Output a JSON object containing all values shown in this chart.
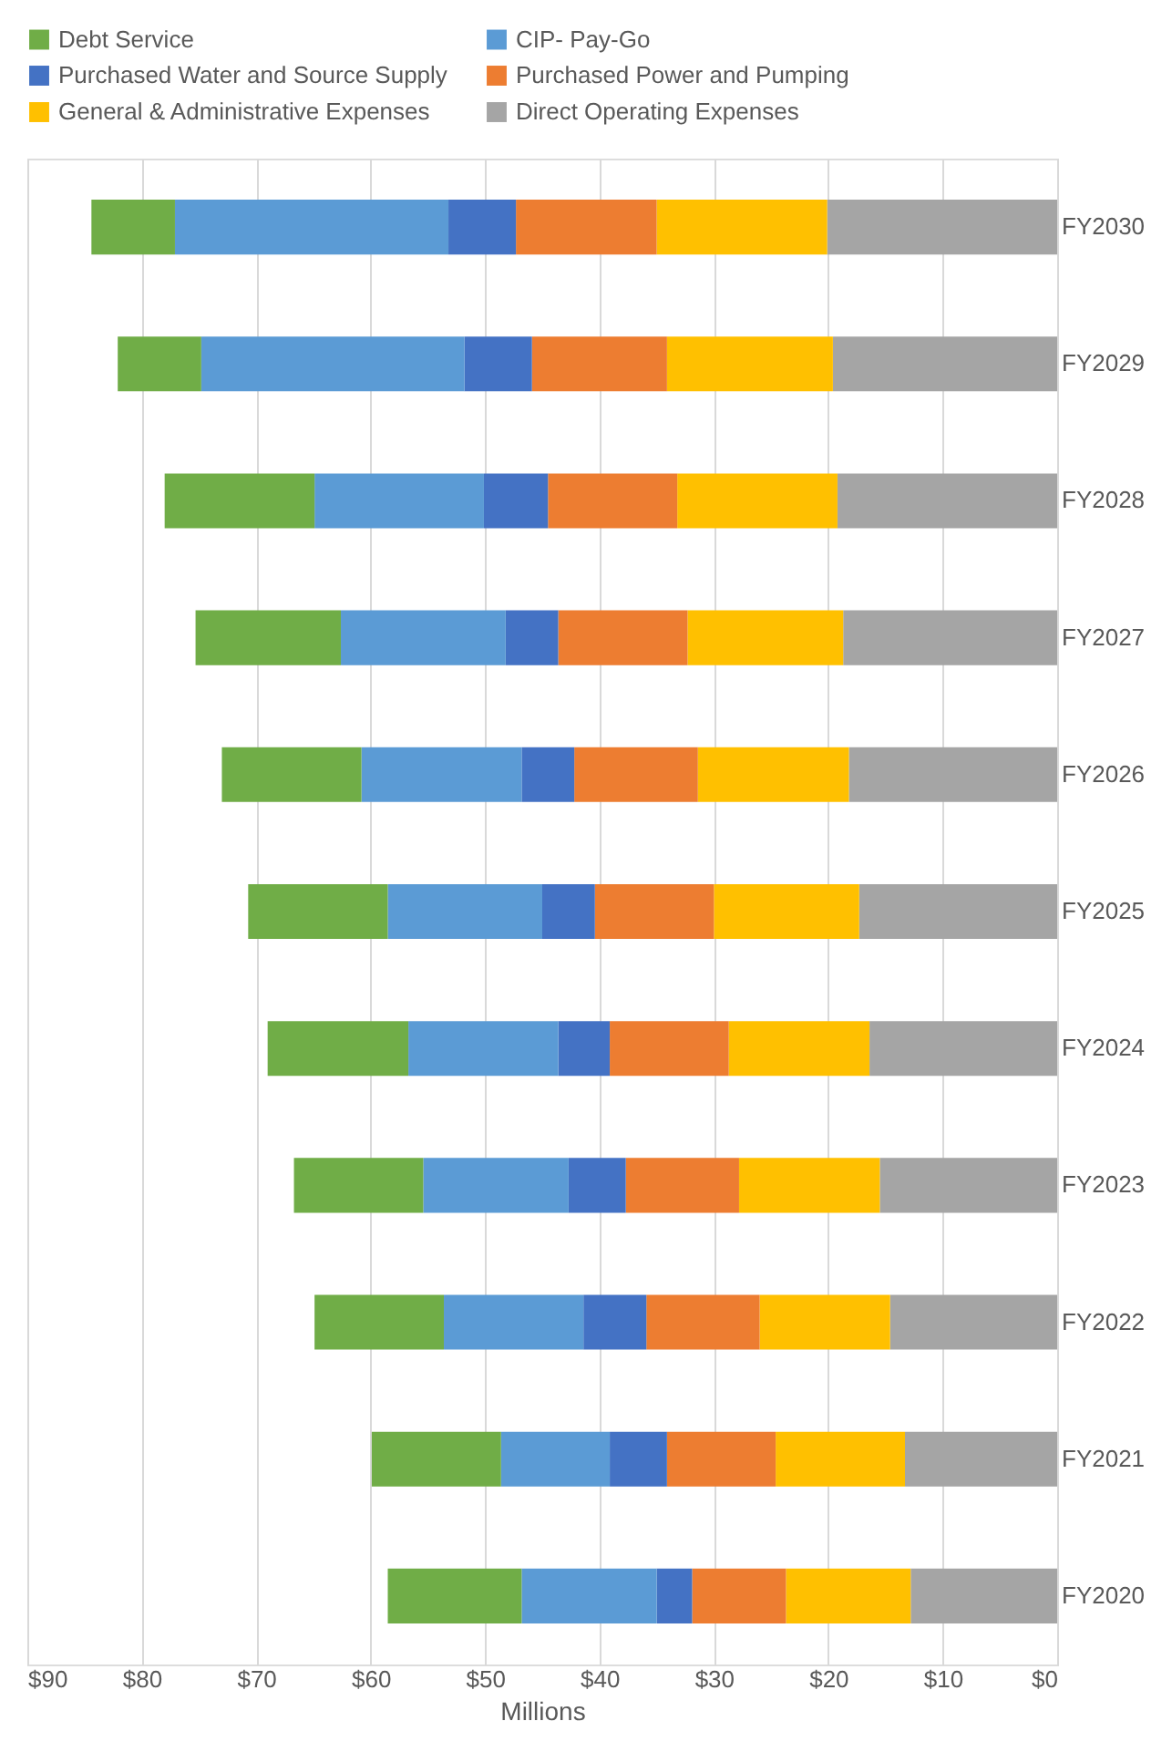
{
  "chart_data": {
    "type": "bar",
    "orientation": "horizontal",
    "stacked": true,
    "categories": [
      "FY2030",
      "FY2029",
      "FY2028",
      "FY2027",
      "FY2026",
      "FY2025",
      "FY2024",
      "FY2023",
      "FY2022",
      "FY2021",
      "FY2020"
    ],
    "series": [
      {
        "name": "Direct Operating Expenses",
        "color": "#a5a5a5",
        "values": [
          20.1,
          19.6,
          19.2,
          18.7,
          18.2,
          17.3,
          16.4,
          15.5,
          14.6,
          13.3,
          12.8
        ]
      },
      {
        "name": "General & Administrative Expenses",
        "color": "#ffc000",
        "values": [
          14.9,
          14.5,
          14.0,
          13.6,
          13.2,
          12.7,
          12.3,
          12.3,
          11.4,
          11.3,
          10.9
        ]
      },
      {
        "name": "Purchased Power and Pumping",
        "color": "#ed7d31",
        "values": [
          12.3,
          11.8,
          11.3,
          11.3,
          10.8,
          10.4,
          10.4,
          9.9,
          9.9,
          9.5,
          8.2
        ]
      },
      {
        "name": "Purchased Water and Source Supply",
        "color": "#4472c4",
        "values": [
          5.9,
          5.9,
          5.6,
          4.6,
          4.6,
          4.6,
          4.5,
          5.0,
          5.5,
          5.0,
          3.1
        ]
      },
      {
        "name": "CIP- Pay-Go",
        "color": "#5b9bd5",
        "values": [
          23.9,
          23.0,
          14.8,
          14.4,
          14.0,
          13.5,
          13.1,
          12.7,
          12.2,
          9.5,
          11.8
        ]
      },
      {
        "name": "Debt Service",
        "color": "#70ad47",
        "values": [
          7.3,
          7.3,
          13.1,
          12.7,
          12.2,
          12.2,
          12.3,
          11.3,
          11.3,
          11.3,
          11.7
        ]
      }
    ],
    "xlabel": "Millions",
    "xlim": [
      90,
      0
    ],
    "xticks": [
      {
        "value": 0,
        "label": "$0"
      },
      {
        "value": 10,
        "label": "$10"
      },
      {
        "value": 20,
        "label": "$20"
      },
      {
        "value": 30,
        "label": "$30"
      },
      {
        "value": 40,
        "label": "$40"
      },
      {
        "value": 50,
        "label": "$50"
      },
      {
        "value": 60,
        "label": "$60"
      },
      {
        "value": 70,
        "label": "$70"
      },
      {
        "value": 80,
        "label": "$80"
      },
      {
        "value": 90,
        "label": "$90"
      }
    ],
    "grid": "x",
    "legend": "top"
  }
}
